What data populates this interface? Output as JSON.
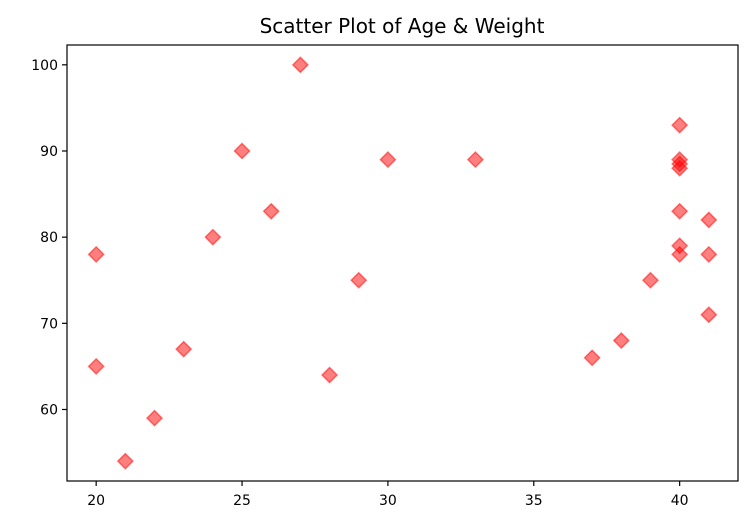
{
  "chart_data": {
    "type": "scatter",
    "title": "Scatter Plot of Age & Weight",
    "xlabel": "",
    "ylabel": "",
    "xlim": [
      19,
      42
    ],
    "ylim": [
      51.7,
      102.3
    ],
    "xticks": [
      20,
      25,
      30,
      35,
      40
    ],
    "yticks": [
      60,
      70,
      80,
      90,
      100
    ],
    "grid": false,
    "marker": "diamond",
    "marker_color": "#ff0000",
    "marker_opacity": 0.5,
    "series": [
      {
        "x": [
          20,
          20,
          21,
          22,
          23,
          24,
          25,
          26,
          27,
          28,
          29,
          30,
          33,
          37,
          38,
          39,
          40,
          40,
          40,
          40,
          40,
          40,
          40,
          41,
          41,
          41
        ],
        "y": [
          78,
          65,
          54,
          59,
          67,
          80,
          90,
          83,
          100,
          64,
          75,
          89,
          89,
          66,
          68,
          75,
          93,
          89,
          88,
          83,
          79,
          78,
          88.5,
          82,
          78,
          71
        ]
      }
    ]
  }
}
